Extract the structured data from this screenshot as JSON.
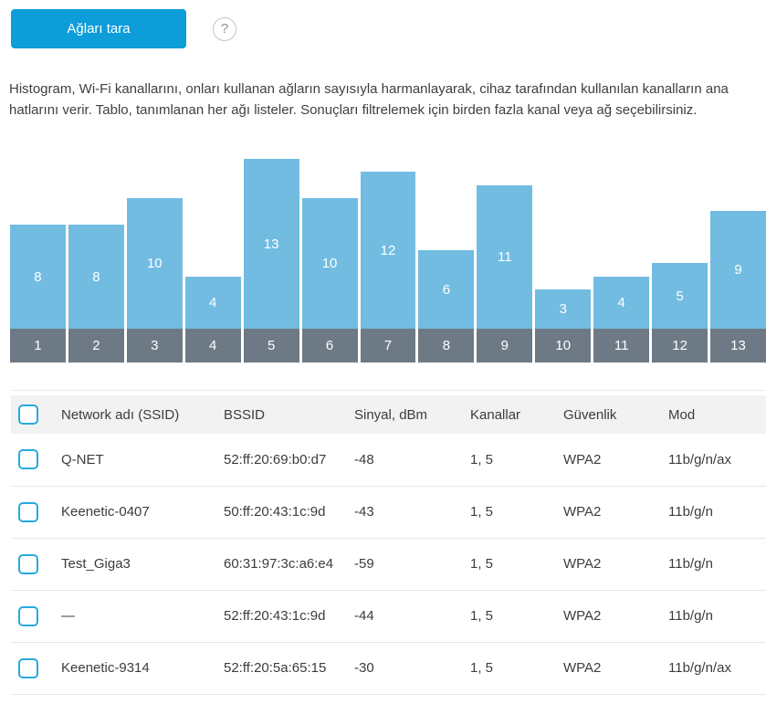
{
  "colors": {
    "accent": "#0d9dd9",
    "bar": "#72bce2",
    "band": "#6d7a85",
    "checkbox": "#27a9de",
    "header_bg": "#f2f2f2"
  },
  "toolbar": {
    "scan_button_label": "Ağları tara",
    "help_icon_glyph": "?"
  },
  "description": "Histogram, Wi-Fi kanallarını, onları kullanan ağların sayısıyla harmanlayarak, cihaz tarafından kullanılan kanalların ana hatlarını verir. Tablo, tanımlanan her ağı listeler. Sonuçları filtrelemek için birden fazla kanal veya ağ seçebilirsiniz.",
  "chart_data": {
    "type": "bar",
    "title": "",
    "categories": [
      "1",
      "2",
      "3",
      "4",
      "5",
      "6",
      "7",
      "8",
      "9",
      "10",
      "11",
      "12",
      "13"
    ],
    "values": [
      8,
      8,
      10,
      4,
      13,
      10,
      12,
      6,
      11,
      3,
      4,
      5,
      9
    ],
    "xlabel": "",
    "ylabel": "",
    "ylim": [
      0,
      13
    ],
    "grid": false,
    "legend": "none",
    "bar_color": "#72bce2",
    "axis_band_color": "#6d7a85",
    "value_labels_inside_bars": true
  },
  "table": {
    "columns": [
      "Network adı (SSID)",
      "BSSID",
      "Sinyal, dBm",
      "Kanallar",
      "Güvenlik",
      "Mod"
    ],
    "rows": [
      {
        "ssid": "Q-NET",
        "bssid": "52:ff:20:69:b0:d7",
        "signal": "-48",
        "channels": "1, 5",
        "security": "WPA2",
        "mode": "11b/g/n/ax"
      },
      {
        "ssid": "Keenetic-0407",
        "bssid": "50:ff:20:43:1c:9d",
        "signal": "-43",
        "channels": "1, 5",
        "security": "WPA2",
        "mode": "11b/g/n"
      },
      {
        "ssid": "Test_Giga3",
        "bssid": "60:31:97:3c:a6:e4",
        "signal": "-59",
        "channels": "1, 5",
        "security": "WPA2",
        "mode": "11b/g/n"
      },
      {
        "ssid": "—",
        "bssid": "52:ff:20:43:1c:9d",
        "signal": "-44",
        "channels": "1, 5",
        "security": "WPA2",
        "mode": "11b/g/n"
      },
      {
        "ssid": "Keenetic-9314",
        "bssid": "52:ff:20:5a:65:15",
        "signal": "-30",
        "channels": "1, 5",
        "security": "WPA2",
        "mode": "11b/g/n/ax"
      }
    ]
  }
}
